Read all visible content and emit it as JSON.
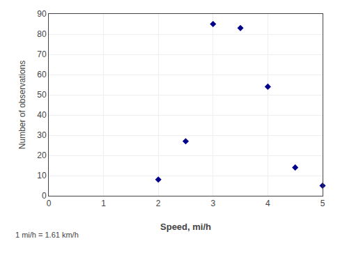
{
  "chart_data": {
    "type": "scatter",
    "x": [
      2.0,
      2.5,
      3.0,
      3.5,
      4.0,
      4.5,
      5.0
    ],
    "values": [
      8,
      27,
      85,
      83,
      54,
      14,
      5
    ],
    "xlabel": "Speed, mi/h",
    "ylabel": "Number of observations",
    "xlim": [
      0,
      5
    ],
    "ylim": [
      0,
      90
    ],
    "xticks": [
      0,
      1,
      2,
      3,
      4,
      5
    ],
    "yticks": [
      0,
      10,
      20,
      30,
      40,
      50,
      60,
      70,
      80,
      90
    ],
    "color": "#00008B",
    "marker": "diamond",
    "grid": true,
    "annotations": [
      "1 mi/h = 1.61 km/h"
    ]
  }
}
